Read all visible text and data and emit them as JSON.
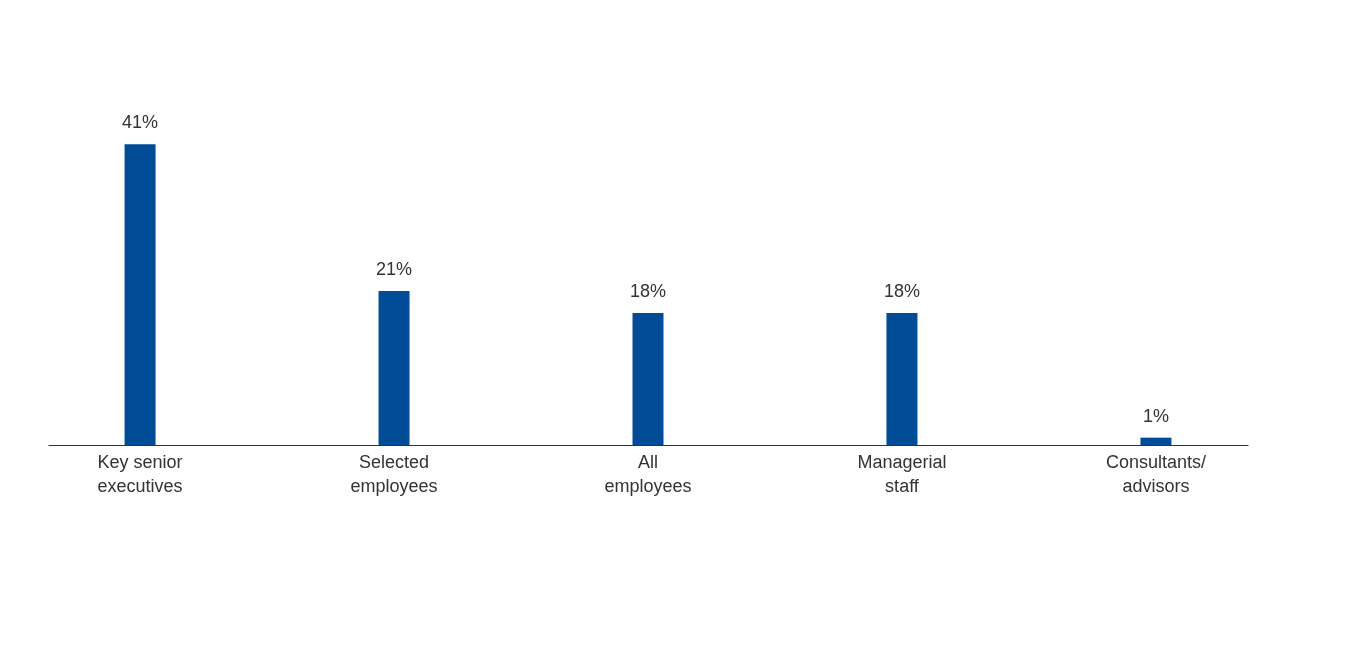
{
  "chart_data": {
    "type": "bar",
    "categories": [
      "Key senior\nexecutives",
      "Selected\nemployees",
      "All\nemployees",
      "Managerial\nstaff",
      "Consultants/\nadvisors"
    ],
    "values": [
      41,
      21,
      18,
      18,
      1
    ],
    "color": "#004c97",
    "data_labels": true,
    "value_labels": [
      "41%",
      "21%",
      "18%",
      "18%",
      "1%"
    ]
  }
}
